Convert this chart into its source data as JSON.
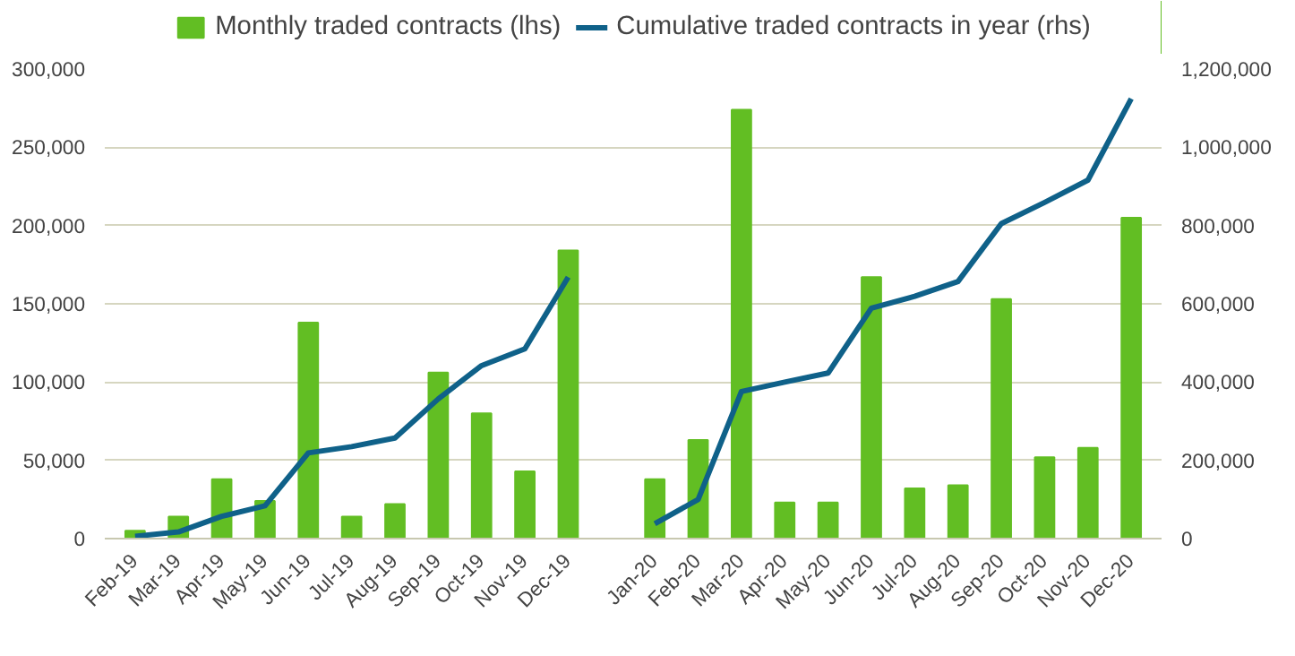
{
  "chart_data": {
    "type": "bar",
    "categories": [
      "Feb-19",
      "Mar-19",
      "Apr-19",
      "May-19",
      "Jun-19",
      "Jul-19",
      "Aug-19",
      "Sep-19",
      "Oct-19",
      "Nov-19",
      "Dec-19",
      null,
      "Jan-20",
      "Feb-20",
      "Mar-20",
      "Apr-20",
      "May-20",
      "Jun-20",
      "Jul-20",
      "Aug-20",
      "Sep-20",
      "Oct-20",
      "Nov-20",
      "Dec-20"
    ],
    "series": [
      {
        "name": "Monthly traded contracts (lhs)",
        "color": "#62be23",
        "values": [
          5000,
          14000,
          38000,
          24000,
          138000,
          14000,
          22000,
          106000,
          80000,
          43000,
          184000,
          null,
          38000,
          63000,
          274000,
          23000,
          23000,
          167000,
          32000,
          34000,
          153000,
          52000,
          58000,
          205000
        ]
      },
      {
        "name": "Cumulative traded contracts in year (rhs)",
        "type": "line",
        "axis": "y2",
        "color": "#0f6189",
        "values": [
          6000,
          17000,
          57000,
          84000,
          219000,
          235000,
          257000,
          357000,
          442000,
          485000,
          668000,
          null,
          38000,
          100000,
          376000,
          400000,
          423000,
          589000,
          619000,
          657000,
          805000,
          859000,
          916000,
          1124000
        ]
      }
    ],
    "ylim": [
      0,
      300000
    ],
    "yticks": [
      {
        "value": 0,
        "label": "0"
      },
      {
        "value": 50000,
        "label": "50,000"
      },
      {
        "value": 100000,
        "label": "100,000"
      },
      {
        "value": 150000,
        "label": "150,000"
      },
      {
        "value": 200000,
        "label": "200,000"
      },
      {
        "value": 250000,
        "label": "250,000"
      },
      {
        "value": 300000,
        "label": "300,000"
      }
    ],
    "y2lim": [
      0,
      1200000
    ],
    "y2ticks": [
      {
        "value": 0,
        "label": "0"
      },
      {
        "value": 200000,
        "label": "200,000"
      },
      {
        "value": 400000,
        "label": "400,000"
      },
      {
        "value": 600000,
        "label": "600,000"
      },
      {
        "value": 800000,
        "label": "800,000"
      },
      {
        "value": 1000000,
        "label": "1,000,000"
      },
      {
        "value": 1200000,
        "label": "1,200,000"
      }
    ],
    "grid": "y",
    "legend": "top",
    "marker": "none",
    "line_style": "solid"
  }
}
